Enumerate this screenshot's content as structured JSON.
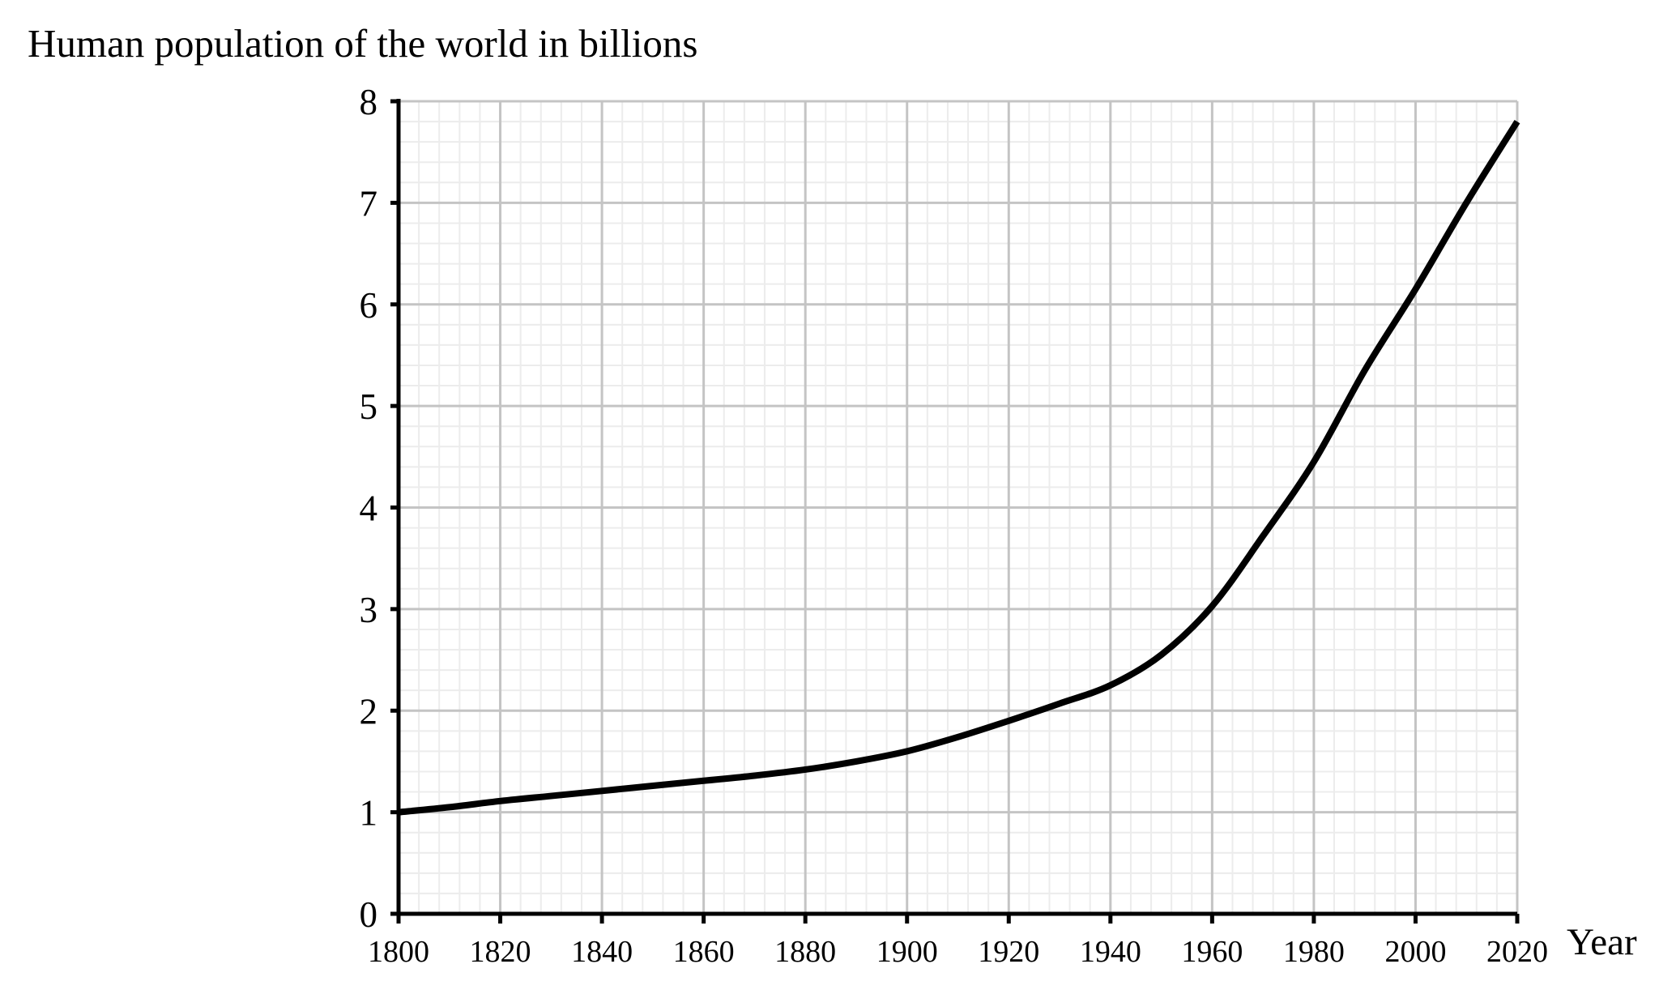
{
  "chart_data": {
    "type": "line",
    "title": "Human population of the world in billions",
    "xlabel": "Year",
    "ylabel": "",
    "xlim": [
      1800,
      2020
    ],
    "ylim": [
      0,
      8
    ],
    "x_ticks": [
      "1800",
      "1820",
      "1840",
      "1860",
      "1880",
      "1900",
      "1920",
      "1940",
      "1960",
      "1980",
      "2000",
      "2020"
    ],
    "y_ticks": [
      "0",
      "1",
      "2",
      "3",
      "4",
      "5",
      "6",
      "7",
      "8"
    ],
    "x_tick_values": [
      1800,
      1820,
      1840,
      1860,
      1880,
      1900,
      1920,
      1940,
      1960,
      1980,
      2000,
      2020
    ],
    "y_tick_values": [
      0,
      1,
      2,
      3,
      4,
      5,
      6,
      7,
      8
    ],
    "grid": true,
    "minor_grid": true,
    "legend": "none",
    "series": [
      {
        "color": "#000000",
        "x": [
          1800,
          1810,
          1820,
          1830,
          1840,
          1850,
          1860,
          1870,
          1880,
          1890,
          1900,
          1910,
          1920,
          1930,
          1940,
          1950,
          1960,
          1970,
          1980,
          1990,
          2000,
          2010,
          2020
        ],
        "y": [
          1.0,
          1.05,
          1.11,
          1.16,
          1.21,
          1.26,
          1.31,
          1.36,
          1.42,
          1.5,
          1.6,
          1.74,
          1.9,
          2.07,
          2.25,
          2.55,
          3.03,
          3.72,
          4.45,
          5.35,
          6.15,
          7.0,
          7.8
        ]
      }
    ]
  },
  "colors": {
    "major_grid": "#c4c4c4",
    "minor_grid": "#ececec",
    "axis": "#000000",
    "line": "#000000"
  }
}
